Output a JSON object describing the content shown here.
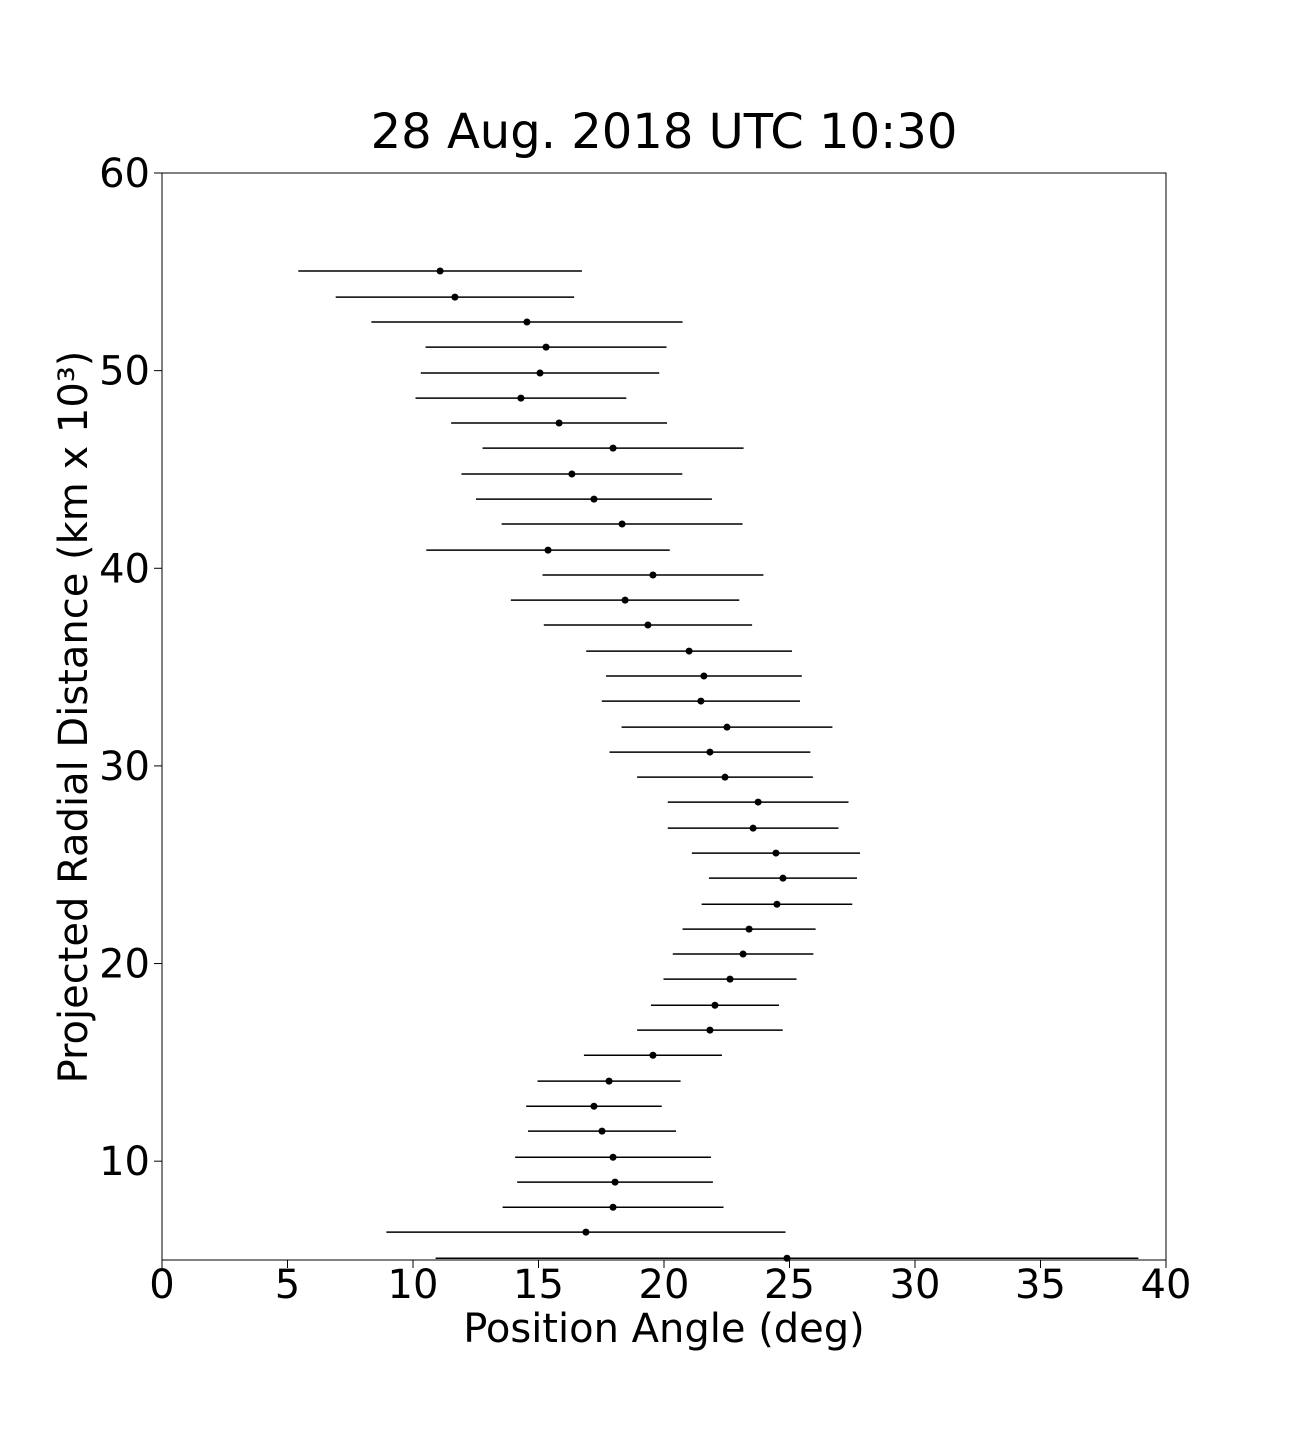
{
  "chart_data": {
    "type": "errorbar",
    "title": "28 Aug. 2018 UTC 10:30",
    "xlabel": "Position Angle (deg)",
    "ylabel": "Projected Radial Distance (km x 10³)",
    "xlim": [
      0,
      40
    ],
    "xticks": [
      0,
      5,
      10,
      15,
      20,
      25,
      30,
      35,
      40
    ],
    "ylim": [
      5,
      60
    ],
    "yticks": [
      10,
      20,
      30,
      40,
      50,
      60
    ],
    "color": "#000000",
    "y": [
      55.04,
      53.72,
      52.46,
      51.19,
      49.88,
      48.61,
      47.35,
      46.08,
      44.77,
      43.5,
      42.24,
      40.92,
      39.66,
      38.39,
      37.13,
      35.81,
      34.55,
      33.28,
      31.96,
      30.7,
      29.43,
      28.17,
      26.85,
      25.59,
      24.32,
      23.0,
      21.74,
      20.48,
      19.21,
      17.89,
      16.63,
      15.36,
      14.05,
      12.78,
      11.52,
      10.2,
      8.94,
      7.67,
      6.41,
      5.09
    ],
    "x": [
      11.08,
      11.67,
      14.54,
      15.3,
      15.06,
      14.3,
      15.82,
      17.97,
      16.33,
      17.21,
      18.33,
      15.38,
      19.56,
      18.45,
      19.36,
      21.0,
      21.59,
      21.47,
      22.51,
      21.83,
      22.43,
      23.75,
      23.55,
      24.46,
      24.74,
      24.5,
      23.39,
      23.15,
      22.63,
      22.03,
      21.83,
      19.56,
      17.81,
      17.21,
      17.53,
      17.97,
      18.05,
      17.97,
      16.89,
      24.9
    ],
    "xerr": [
      5.65,
      4.75,
      6.2,
      4.8,
      4.75,
      4.2,
      4.3,
      5.2,
      4.4,
      4.7,
      4.8,
      4.85,
      4.4,
      4.55,
      4.15,
      4.1,
      3.9,
      3.95,
      4.2,
      4.0,
      3.5,
      3.6,
      3.4,
      3.35,
      2.95,
      3.0,
      2.65,
      2.8,
      2.65,
      2.55,
      2.9,
      2.75,
      2.85,
      2.7,
      2.95,
      3.9,
      3.9,
      4.4,
      7.95,
      14.0
    ]
  }
}
